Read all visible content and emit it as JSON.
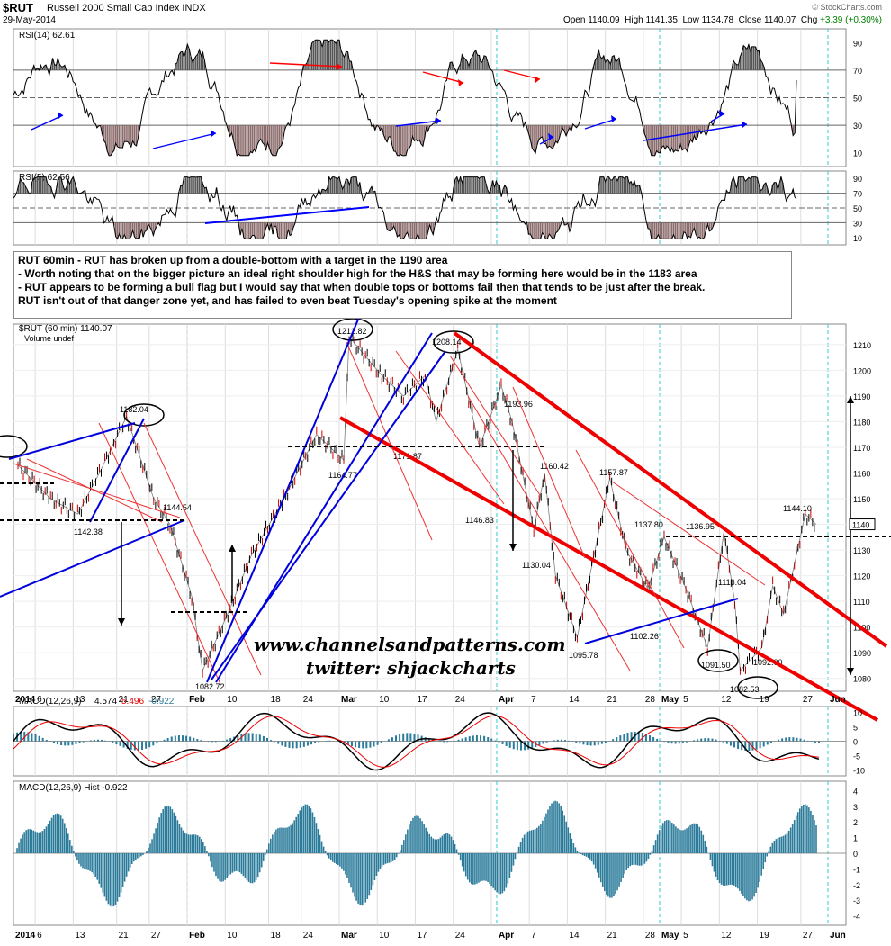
{
  "header": {
    "symbol": "$RUT",
    "name": "Russell 2000 Small Cap Index  INDX",
    "date": "29-May-2014",
    "open_label": "Open",
    "open": "1140.09",
    "high_label": "High",
    "high": "1141.35",
    "low_label": "Low",
    "low": "1134.78",
    "close_label": "Close",
    "close": "1140.07",
    "chg_label": "Chg",
    "chg": "+3.39 (+0.30%)",
    "source": "© StockCharts.com"
  },
  "annotation": {
    "lines": [
      "RUT 60min - RUT has broken up from a double-bottom with a target in the 1190 area",
      "- Worth noting that on the bigger picture an ideal right shoulder high for the H&S that may be forming here would be in the 1183 area",
      "- RUT appears to be forming a bull flag but I would say that when double tops or bottoms fail then that tends to be just after the break.",
      "RUT isn't out of that danger zone yet, and has failed to even beat Tuesday's opening spike at the moment"
    ]
  },
  "watermark": {
    "line1": "www.channelsandpatterns.com",
    "line2": "twitter: shjackcharts"
  },
  "chart_data": [
    {
      "type": "line",
      "panel": "RSI(14)",
      "title": "RSI(14) 62.61",
      "ylim": [
        0,
        100
      ],
      "yticks": [
        10,
        30,
        50,
        70,
        90
      ],
      "last": 62.61,
      "colors": {
        "line": "#000000",
        "overbought_fill": "#555555",
        "oversold_fill": "#8b6b6b"
      }
    },
    {
      "type": "line",
      "panel": "RSI(5)",
      "title": "RSI(5) 62.56",
      "ylim": [
        0,
        100
      ],
      "yticks": [
        10,
        30,
        50,
        70,
        90
      ],
      "last": 62.56
    },
    {
      "type": "line",
      "panel": "price",
      "title": "$RUT (60 min) 1140.07",
      "subtitle": "Volume undef",
      "ylim": [
        1075,
        1218
      ],
      "yticks": [
        1080,
        1090,
        1100,
        1110,
        1120,
        1130,
        1140,
        1150,
        1160,
        1170,
        1180,
        1190,
        1200,
        1210
      ],
      "xticks": [
        "2014",
        "6",
        "13",
        "21",
        "27",
        "Feb",
        "10",
        "18",
        "24",
        "Mar",
        "10",
        "17",
        "24",
        "Apr",
        "7",
        "14",
        "21",
        "28",
        "May",
        "5",
        "12",
        "19",
        "27",
        "Jun"
      ],
      "series": [
        {
          "x": [
            "2014-01-02",
            "2014-01-08",
            "2014-01-13",
            "2014-01-17",
            "2014-01-22",
            "2014-01-27",
            "2014-01-30",
            "2014-02-03",
            "2014-02-05",
            "2014-02-10",
            "2014-02-14",
            "2014-02-20",
            "2014-02-26",
            "2014-03-03",
            "2014-03-04",
            "2014-03-10",
            "2014-03-14",
            "2014-03-18",
            "2014-03-20",
            "2014-03-24",
            "2014-03-28",
            "2014-04-01",
            "2014-04-03",
            "2014-04-07",
            "2014-04-09",
            "2014-04-11",
            "2014-04-15",
            "2014-04-21",
            "2014-04-24",
            "2014-04-28",
            "2014-05-01",
            "2014-05-05",
            "2014-05-09",
            "2014-05-12",
            "2014-05-14",
            "2014-05-15",
            "2014-05-19",
            "2014-05-21",
            "2014-05-23",
            "2014-05-27",
            "2014-05-29"
          ],
          "values": [
            1163,
            1150,
            1144,
            1160,
            1182,
            1150,
            1140,
            1112,
            1083,
            1107,
            1128,
            1150,
            1175,
            1165,
            1213,
            1198,
            1190,
            1198,
            1180,
            1208,
            1170,
            1194,
            1180,
            1138,
            1160,
            1120,
            1096,
            1158,
            1130,
            1115,
            1135,
            1115,
            1092,
            1137,
            1110,
            1083,
            1092,
            1116,
            1105,
            1144,
            1140
          ]
        }
      ],
      "labels": [
        "1182.04",
        "1142.38",
        "1144.54",
        "1082.72",
        "1212.82",
        "1164.77",
        "1208.14",
        "1171.87",
        "1146.83",
        "1193.96",
        "1160.42",
        "1130.04",
        "1157.87",
        "1095.78",
        "1102.26",
        "1137.80",
        "1136.95",
        "1091.50",
        "1116.04",
        "1082.53",
        "1092.00",
        "1144.10"
      ],
      "right_axis_marker": "1140"
    },
    {
      "type": "line",
      "panel": "MACD",
      "title": "MACD(12,26,9)",
      "values_text": [
        "4.574",
        "5.496",
        "-0.922"
      ],
      "ylim": [
        -12,
        12
      ],
      "yticks": [
        10,
        5,
        0,
        -5,
        -10
      ]
    },
    {
      "type": "bar",
      "panel": "MACD Hist",
      "title": "MACD(12,26,9) Hist -0.922",
      "ylim": [
        -4.6,
        4.6
      ],
      "yticks": [
        4,
        3,
        2,
        1,
        0,
        -1,
        -2,
        -3,
        -4
      ],
      "colors": {
        "bars": "#2b7b9a"
      }
    }
  ]
}
